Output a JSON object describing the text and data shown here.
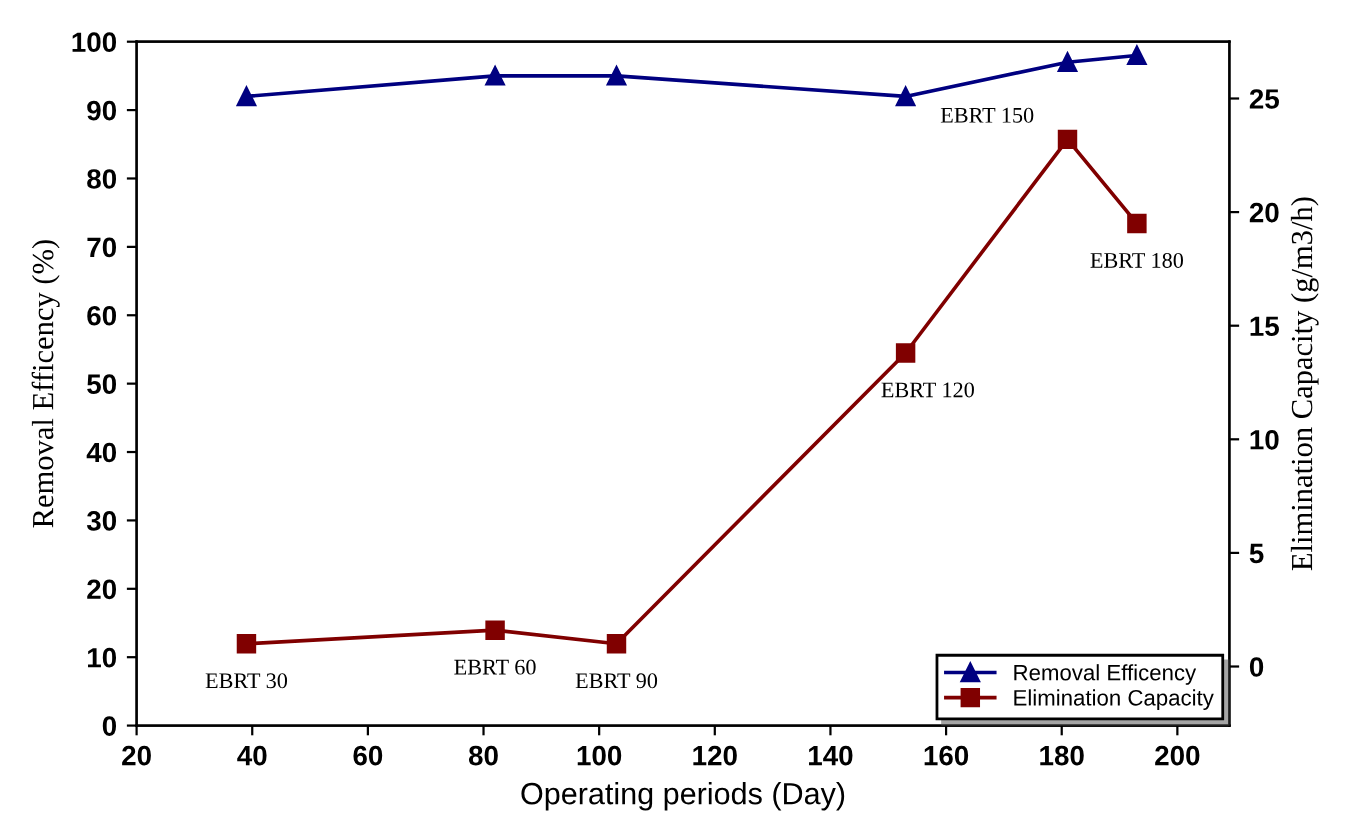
{
  "chart_data": {
    "type": "line",
    "xlabel": "Operating periods (Day)",
    "ylabel": "Removal Efficency (%)",
    "y2label": "Elimination Capacity (g/m3/h)",
    "x": [
      39,
      82,
      103,
      153,
      181,
      193
    ],
    "series": [
      {
        "name": "Removal Efficency",
        "color": "#000080",
        "marker": "triangle",
        "values": [
          92,
          95,
          95,
          92,
          97,
          98
        ]
      },
      {
        "name": "Elimination Capacity",
        "color": "#800000",
        "marker": "square",
        "axis": "y2",
        "values": [
          1.0,
          1.6,
          1.0,
          13.8,
          23.2,
          19.5
        ]
      }
    ],
    "xlim": [
      20,
      209
    ],
    "xticks": [
      20,
      40,
      60,
      80,
      100,
      120,
      140,
      160,
      180,
      200
    ],
    "ylim": [
      0,
      100
    ],
    "yticks": [
      0,
      10,
      20,
      30,
      40,
      50,
      60,
      70,
      80,
      90,
      100
    ],
    "y2lim": [
      -2.6,
      27.5
    ],
    "y2ticks": [
      0,
      5,
      10,
      15,
      20,
      25
    ],
    "annotations": [
      "EBRT 30",
      "EBRT 60",
      "EBRT 90",
      "EBRT 120",
      "EBRT 150",
      "EBRT 180"
    ],
    "legend": "bottom right",
    "grid": false,
    "line_style": "solid"
  }
}
